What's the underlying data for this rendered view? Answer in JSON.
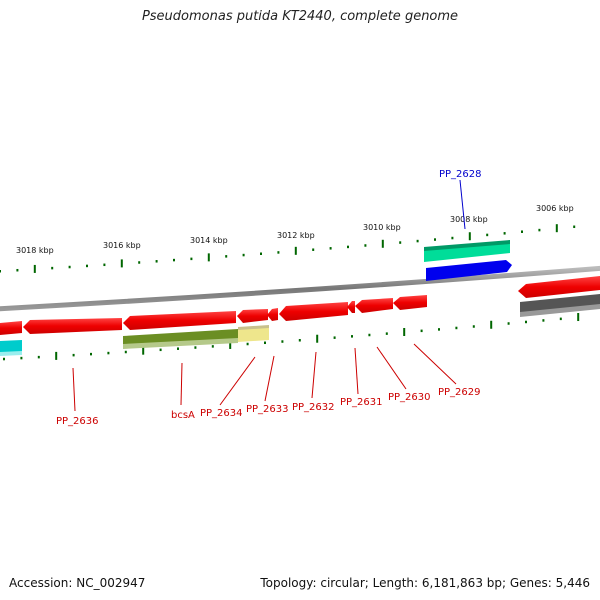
{
  "title": "Pseudomonas putida KT2440, complete genome",
  "footer": {
    "accession": "Accession: NC_002947",
    "summary": "Topology: circular; Length: 6,181,863 bp; Genes: 5,446"
  },
  "scale_labels": [
    "3018 kbp",
    "3016 kbp",
    "3014 kbp",
    "3012 kbp",
    "3010 kbp",
    "3008 kbp",
    "3006 kbp"
  ],
  "gene_labels": {
    "outer": [
      "PP_2628"
    ],
    "inner": [
      "PP_2636",
      "bcsA",
      "PP_2634",
      "PP_2633",
      "PP_2632",
      "PP_2631",
      "PP_2630",
      "PP_2629"
    ]
  },
  "colors": {
    "forward": "#0000ee",
    "reverse": "#ee0000",
    "teal": "#00dd99",
    "olive": "#6b8e23",
    "khaki": "#eee68c",
    "cyan": "#00cccc",
    "gray": "#555555",
    "backbone": "#888888",
    "ticks": "#006600",
    "label_red": "#cc0000",
    "label_blue": "#0000cc"
  }
}
